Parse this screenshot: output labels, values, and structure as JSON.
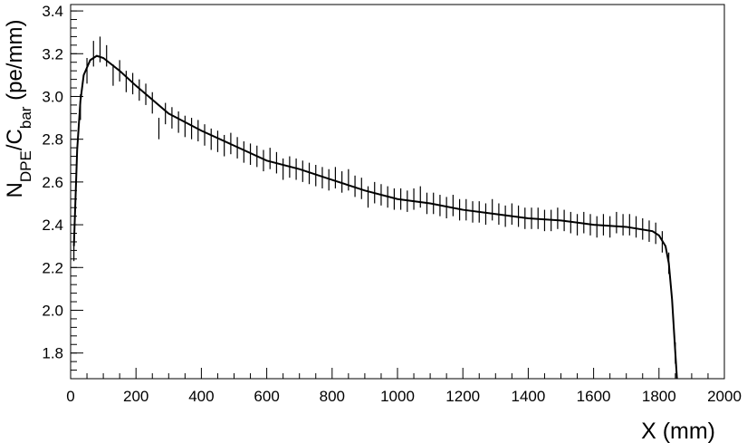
{
  "chart_data": {
    "type": "errorbar",
    "xlabel": "X (mm)",
    "ylabel_parts": [
      {
        "text": "N"
      },
      {
        "text": "DPE",
        "sub": true
      },
      {
        "text": "/C"
      },
      {
        "text": "bar",
        "sub": true
      },
      {
        "text": " (pe/mm)"
      }
    ],
    "xlim": [
      0,
      2000
    ],
    "ylim": [
      1.68,
      3.43
    ],
    "xticks": [
      0,
      200,
      400,
      600,
      800,
      1000,
      1200,
      1400,
      1600,
      1800,
      2000
    ],
    "yticks": [
      1.8,
      {
        "value": 2,
        "label": "2.0"
      },
      2.2,
      2.4,
      2.6,
      2.8,
      {
        "value": 3,
        "label": "3.0"
      },
      3.2,
      3.4
    ],
    "color": "#000000",
    "points": {
      "x": [
        10,
        30,
        50,
        70,
        90,
        110,
        130,
        150,
        170,
        190,
        210,
        230,
        250,
        270,
        290,
        310,
        330,
        350,
        370,
        390,
        410,
        430,
        450,
        470,
        490,
        510,
        530,
        550,
        570,
        590,
        610,
        630,
        650,
        670,
        690,
        710,
        730,
        750,
        770,
        790,
        810,
        830,
        850,
        870,
        890,
        910,
        930,
        950,
        970,
        990,
        1010,
        1030,
        1050,
        1070,
        1090,
        1110,
        1130,
        1150,
        1170,
        1190,
        1210,
        1230,
        1250,
        1270,
        1290,
        1310,
        1330,
        1350,
        1370,
        1390,
        1410,
        1430,
        1450,
        1470,
        1490,
        1510,
        1530,
        1550,
        1570,
        1590,
        1610,
        1630,
        1650,
        1670,
        1690,
        1710,
        1730,
        1750,
        1770,
        1790,
        1810,
        1830,
        1850
      ],
      "values": [
        2.29,
        2.95,
        3.12,
        3.2,
        3.22,
        3.19,
        3.1,
        3.12,
        3.07,
        3.06,
        3.03,
        3.01,
        2.97,
        2.85,
        2.92,
        2.9,
        2.88,
        2.86,
        2.85,
        2.84,
        2.82,
        2.8,
        2.79,
        2.77,
        2.78,
        2.76,
        2.74,
        2.73,
        2.72,
        2.7,
        2.71,
        2.69,
        2.66,
        2.67,
        2.66,
        2.65,
        2.64,
        2.63,
        2.62,
        2.61,
        2.62,
        2.6,
        2.61,
        2.58,
        2.57,
        2.53,
        2.55,
        2.54,
        2.53,
        2.52,
        2.52,
        2.51,
        2.52,
        2.53,
        2.5,
        2.5,
        2.49,
        2.48,
        2.49,
        2.47,
        2.47,
        2.46,
        2.46,
        2.45,
        2.47,
        2.45,
        2.44,
        2.45,
        2.44,
        2.43,
        2.43,
        2.43,
        2.42,
        2.42,
        2.43,
        2.42,
        2.41,
        2.4,
        2.41,
        2.4,
        2.39,
        2.4,
        2.39,
        2.41,
        2.4,
        2.4,
        2.39,
        2.38,
        2.37,
        2.36,
        2.32,
        2.22,
        1.8
      ],
      "errors": [
        0.06,
        0.06,
        0.06,
        0.06,
        0.06,
        0.05,
        0.05,
        0.05,
        0.05,
        0.05,
        0.05,
        0.05,
        0.05,
        0.05,
        0.05,
        0.05,
        0.05,
        0.05,
        0.05,
        0.05,
        0.05,
        0.05,
        0.05,
        0.05,
        0.05,
        0.05,
        0.05,
        0.05,
        0.05,
        0.05,
        0.05,
        0.05,
        0.05,
        0.05,
        0.05,
        0.05,
        0.05,
        0.05,
        0.05,
        0.05,
        0.05,
        0.05,
        0.05,
        0.05,
        0.05,
        0.05,
        0.05,
        0.05,
        0.05,
        0.05,
        0.05,
        0.05,
        0.05,
        0.05,
        0.05,
        0.05,
        0.05,
        0.05,
        0.05,
        0.05,
        0.05,
        0.05,
        0.05,
        0.05,
        0.05,
        0.05,
        0.05,
        0.05,
        0.05,
        0.05,
        0.05,
        0.05,
        0.05,
        0.05,
        0.05,
        0.05,
        0.05,
        0.05,
        0.05,
        0.05,
        0.05,
        0.05,
        0.05,
        0.05,
        0.05,
        0.05,
        0.05,
        0.05,
        0.05,
        0.05,
        0.05,
        0.05,
        0.05
      ]
    },
    "fit": {
      "x": [
        10,
        20,
        30,
        40,
        60,
        80,
        100,
        150,
        200,
        300,
        400,
        500,
        600,
        700,
        800,
        900,
        1000,
        1100,
        1200,
        1300,
        1400,
        1500,
        1600,
        1700,
        1780,
        1800,
        1820,
        1830,
        1840,
        1850,
        1855
      ],
      "values": [
        2.3,
        2.75,
        2.98,
        3.1,
        3.17,
        3.19,
        3.18,
        3.12,
        3.05,
        2.92,
        2.84,
        2.77,
        2.7,
        2.66,
        2.61,
        2.56,
        2.52,
        2.5,
        2.47,
        2.45,
        2.43,
        2.42,
        2.4,
        2.39,
        2.37,
        2.35,
        2.3,
        2.22,
        2.05,
        1.8,
        1.68
      ]
    }
  }
}
